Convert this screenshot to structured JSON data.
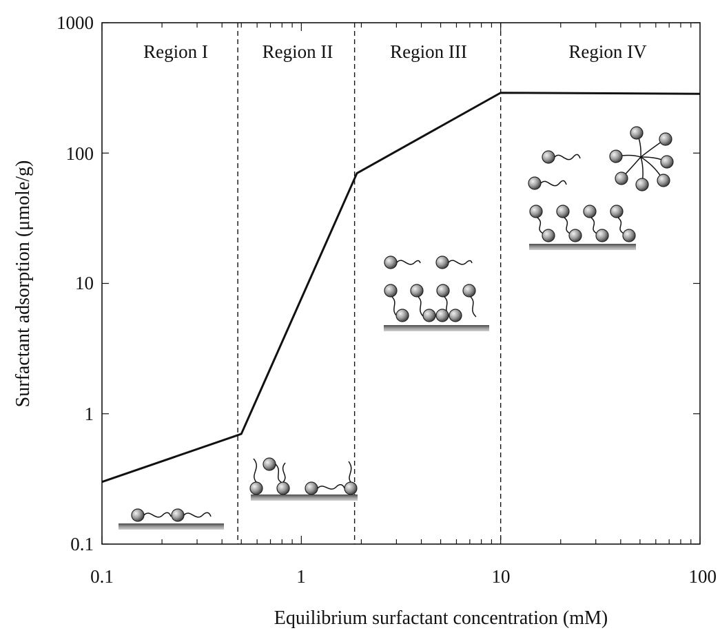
{
  "chart_data": {
    "type": "line",
    "x_scale": "log",
    "y_scale": "log",
    "xlim": [
      0.1,
      100
    ],
    "ylim": [
      0.1,
      1000
    ],
    "xlabel": "Equilibrium surfactant concentration (mM)",
    "ylabel": "Surfactant adsorption (μmole/g)",
    "x_ticks": [
      0.1,
      1,
      10,
      100
    ],
    "x_tick_labels": [
      "0.1",
      "1",
      "10",
      "100"
    ],
    "y_ticks": [
      0.1,
      1,
      10,
      100,
      1000
    ],
    "y_tick_labels": [
      "0.1",
      "1",
      "10",
      "100",
      "1000"
    ],
    "grid": false,
    "series": [
      {
        "x": [
          0.1,
          0.5,
          1.9,
          10,
          100
        ],
        "y": [
          0.3,
          0.7,
          70,
          290,
          285
        ]
      }
    ],
    "region_boundaries": [
      0.48,
      1.85,
      10
    ],
    "regions": [
      {
        "label": "Region I",
        "x_range": [
          0.1,
          0.48
        ]
      },
      {
        "label": "Region II",
        "x_range": [
          0.48,
          1.85
        ]
      },
      {
        "label": "Region III",
        "x_range": [
          1.85,
          10
        ]
      },
      {
        "label": "Region IV",
        "x_range": [
          10,
          100
        ]
      }
    ]
  },
  "colors": {
    "line": "#111111",
    "surface": "#7a7a7a",
    "head": "#9a9a9a"
  }
}
